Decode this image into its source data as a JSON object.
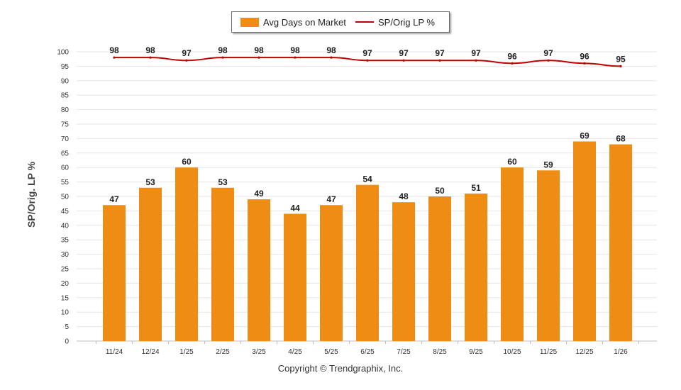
{
  "chart_data": {
    "type": "bar",
    "categories": [
      "11/24",
      "12/24",
      "1/25",
      "2/25",
      "3/25",
      "4/25",
      "5/25",
      "6/25",
      "7/25",
      "8/25",
      "9/25",
      "10/25",
      "11/25",
      "12/25",
      "1/26"
    ],
    "series": [
      {
        "name": "Avg Days on Market",
        "type": "bar",
        "color": "#ef8c14",
        "values": [
          47,
          53,
          60,
          53,
          49,
          44,
          47,
          54,
          48,
          50,
          51,
          60,
          59,
          69,
          68
        ]
      },
      {
        "name": "SP/Orig LP %",
        "type": "line",
        "color": "#c00000",
        "values": [
          98,
          98,
          97,
          98,
          98,
          98,
          98,
          97,
          97,
          97,
          97,
          96,
          97,
          96,
          95
        ]
      }
    ],
    "ylabel": "SP/Orig. LP %",
    "ylim": [
      0,
      100
    ],
    "yticks": [
      0,
      5,
      10,
      15,
      20,
      25,
      30,
      35,
      40,
      45,
      50,
      55,
      60,
      65,
      70,
      75,
      80,
      85,
      90,
      95,
      100
    ],
    "grid": true,
    "legend_position": "top-center"
  },
  "footer": {
    "copyright": "Copyright © Trendgraphix, Inc."
  }
}
